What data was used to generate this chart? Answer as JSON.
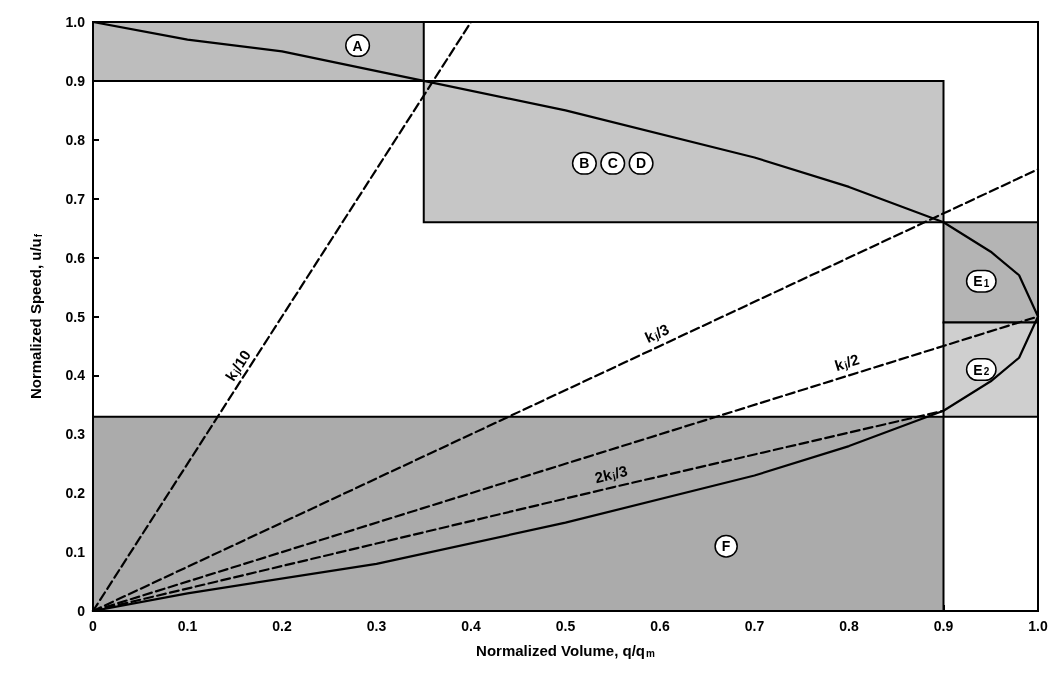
{
  "chart_data": {
    "type": "line",
    "xlabel": "Normalized Volume, q/q$_{m}$",
    "ylabel": "Normalized Speed, u/u$_{f}$",
    "xlim": [
      0,
      1
    ],
    "ylim": [
      0,
      1
    ],
    "xticks": [
      0,
      0.1,
      0.2,
      0.3,
      0.4,
      0.5,
      0.6,
      0.7,
      0.8,
      0.9,
      {
        "value": 1,
        "label": "1.0"
      }
    ],
    "yticks": [
      0,
      0.1,
      0.2,
      0.3,
      0.4,
      0.5,
      0.6,
      0.7,
      0.8,
      0.9,
      {
        "value": 1,
        "label": "1.0"
      }
    ],
    "grid": false,
    "legend": false,
    "marker": "none",
    "series": [
      {
        "type": "area",
        "color": "#bdbdbd",
        "x": [
          0,
          0.35,
          0.35,
          0,
          0
        ],
        "values": [
          1.0,
          1.0,
          0.9,
          0.9,
          1.0
        ]
      },
      {
        "type": "area",
        "color": "#c6c6c6",
        "x": [
          0.35,
          0.9,
          0.9,
          0.35,
          0.35
        ],
        "values": [
          0.9,
          0.9,
          0.66,
          0.66,
          0.9
        ]
      },
      {
        "type": "area",
        "color": "#b4b4b4",
        "x": [
          0.9,
          1.0,
          1.0,
          0.9,
          0.9
        ],
        "values": [
          0.66,
          0.66,
          0.49,
          0.49,
          0.66
        ]
      },
      {
        "type": "area",
        "color": "#cfcfcf",
        "x": [
          0.9,
          1.0,
          1.0,
          0.9,
          0.9
        ],
        "values": [
          0.49,
          0.49,
          0.33,
          0.33,
          0.49
        ]
      },
      {
        "type": "area",
        "color": "#ababab",
        "x": [
          0,
          0.9,
          0.9,
          0,
          0
        ],
        "values": [
          0.33,
          0.33,
          0,
          0,
          0.33
        ]
      },
      {
        "color": "#000000",
        "line_style": "solid",
        "x": [
          0,
          0.1,
          0.2,
          0.35,
          0.5,
          0.7,
          0.8,
          0.9,
          0.95,
          0.98,
          1.0,
          0.98,
          0.95,
          0.9,
          0.8,
          0.7,
          0.5,
          0.3,
          0.1,
          0
        ],
        "values": [
          1.0,
          0.97,
          0.95,
          0.9,
          0.85,
          0.77,
          0.72,
          0.66,
          0.61,
          0.57,
          0.5,
          0.43,
          0.39,
          0.34,
          0.28,
          0.23,
          0.15,
          0.08,
          0.03,
          0
        ]
      },
      {
        "name": "k$_{j}$/10",
        "color": "#000000",
        "line_style": "dashed",
        "x": [
          0,
          0.16,
          0.4
        ],
        "values": [
          0,
          0.4,
          1.0
        ]
      },
      {
        "name": "k$_{j}$/3",
        "color": "#000000",
        "line_style": "dashed",
        "x": [
          0,
          0.6,
          1.0
        ],
        "values": [
          0,
          0.45,
          0.75
        ]
      },
      {
        "name": "k$_{j}$/2",
        "color": "#000000",
        "line_style": "dashed",
        "x": [
          0,
          0.8,
          1.0
        ],
        "values": [
          0,
          0.4,
          0.5
        ]
      },
      {
        "name": "2k$_{j}$/3",
        "color": "#000000",
        "line_style": "dashed",
        "x": [
          0,
          0.55,
          0.9
        ],
        "values": [
          0,
          0.21,
          0.34
        ]
      }
    ],
    "annotations": [
      {
        "text": "A",
        "x": 0.28,
        "y": 0.96
      },
      {
        "text": "B",
        "x": 0.52,
        "y": 0.76
      },
      {
        "text": "C",
        "x": 0.55,
        "y": 0.76
      },
      {
        "text": "D",
        "x": 0.58,
        "y": 0.76
      },
      {
        "text": "E$_{1}$",
        "x": 0.94,
        "y": 0.56
      },
      {
        "text": "E$_{2}$",
        "x": 0.94,
        "y": 0.41
      },
      {
        "text": "F",
        "x": 0.67,
        "y": 0.11
      }
    ]
  }
}
